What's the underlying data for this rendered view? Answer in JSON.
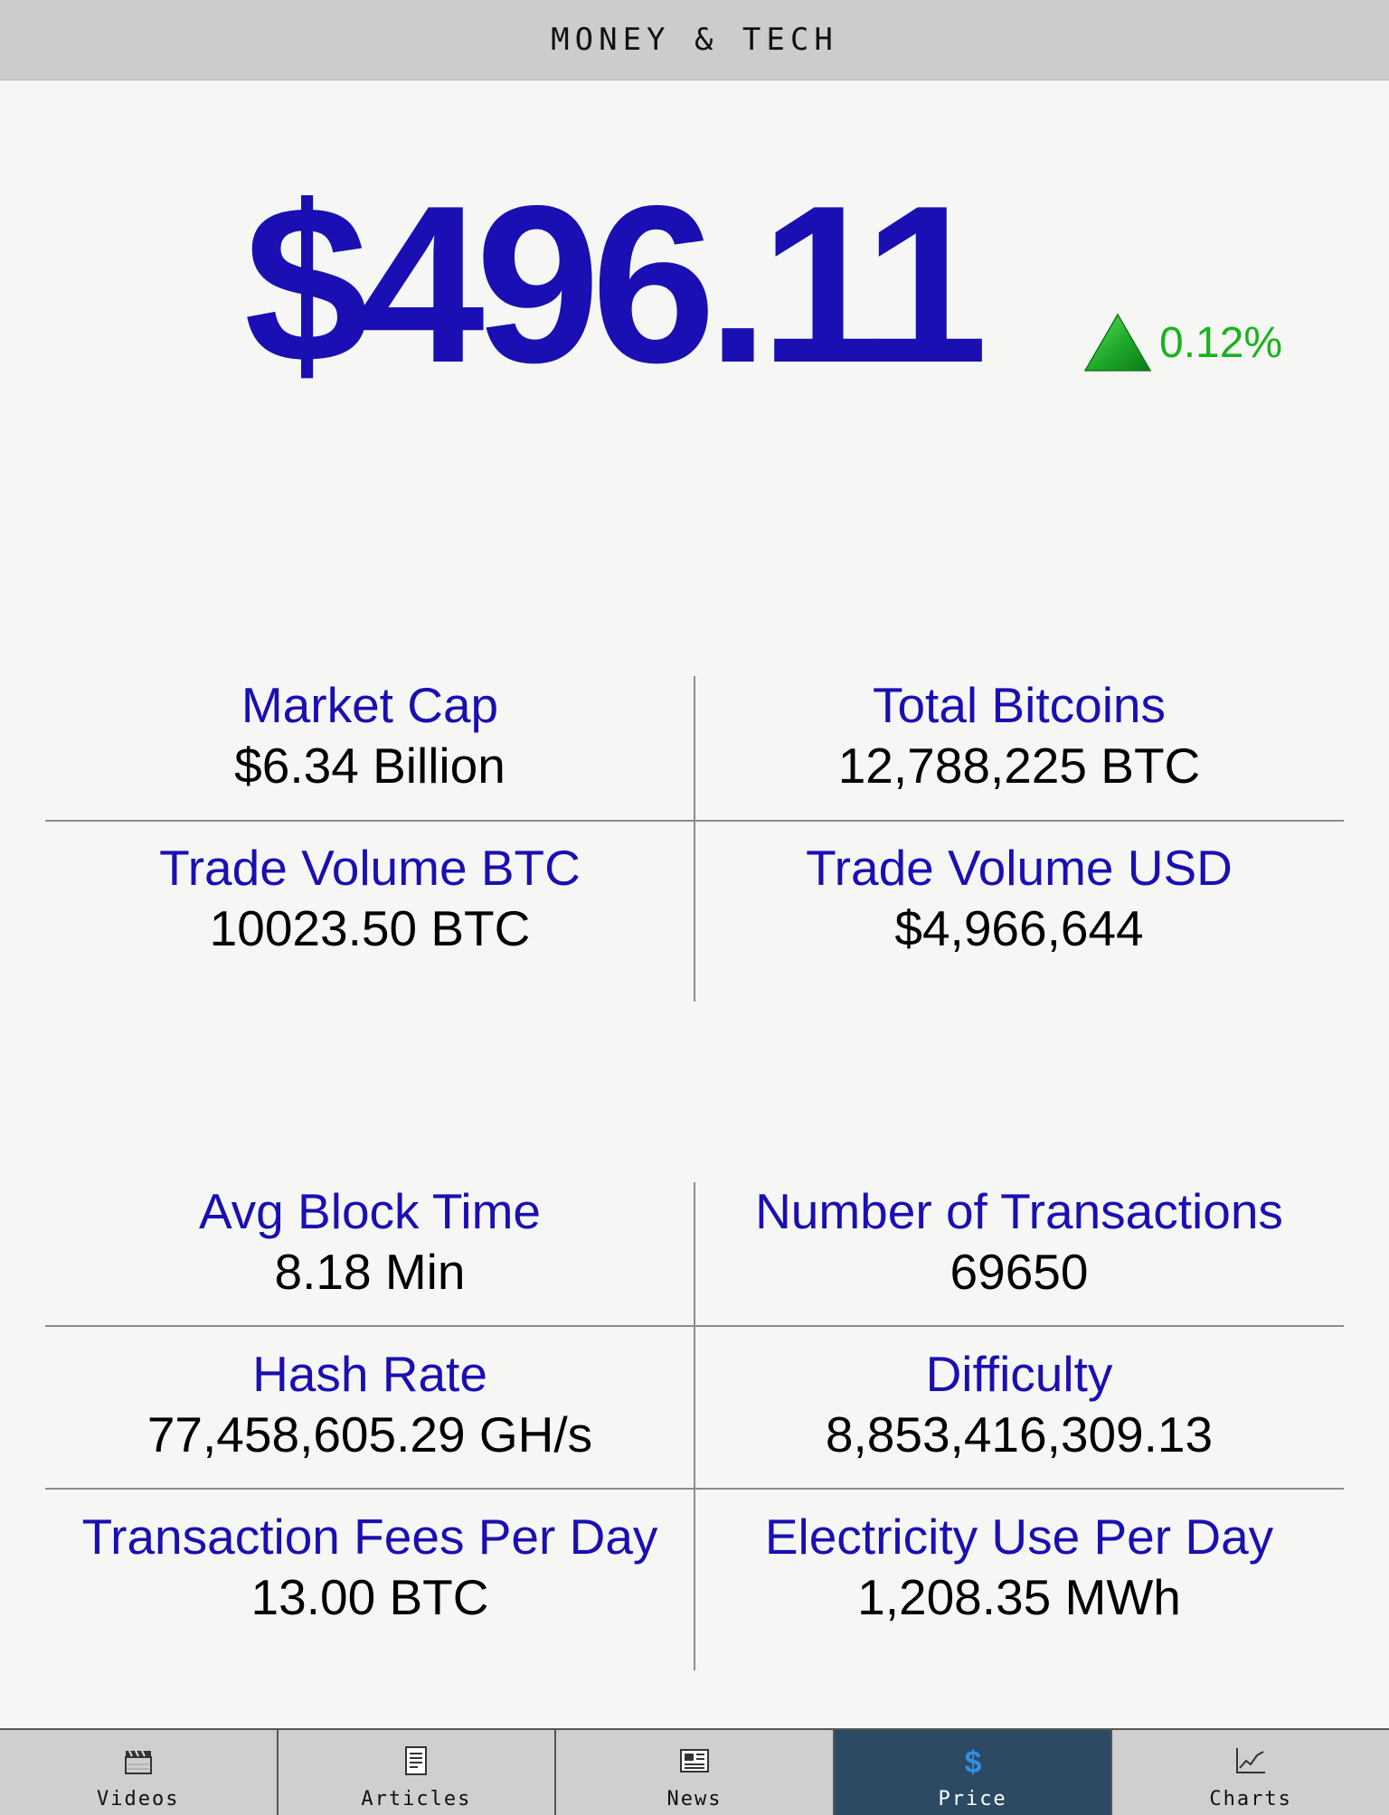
{
  "header": {
    "title": "MONEY & TECH"
  },
  "price": {
    "value": "$496.11",
    "change": "0.12%",
    "direction": "up",
    "price_color": "#1a0fb2",
    "change_color": "#19b31e"
  },
  "stats_top": [
    {
      "label": "Market Cap",
      "value": "$6.34 Billion"
    },
    {
      "label": "Total Bitcoins",
      "value": "12,788,225 BTC"
    },
    {
      "label": "Trade Volume BTC",
      "value": "10023.50 BTC"
    },
    {
      "label": "Trade Volume USD",
      "value": "$4,966,644"
    }
  ],
  "stats_bottom": [
    {
      "label": "Avg Block Time",
      "value": "8.18 Min"
    },
    {
      "label": "Number of Transactions",
      "value": "69650"
    },
    {
      "label": "Hash Rate",
      "value": "77,458,605.29 GH/s"
    },
    {
      "label": "Difficulty",
      "value": "8,853,416,309.13"
    },
    {
      "label": "Transaction Fees Per Day",
      "value": "13.00 BTC"
    },
    {
      "label": "Electricity Use Per Day",
      "value": "1,208.35 MWh"
    }
  ],
  "tabbar": {
    "active": "Price",
    "tabs": [
      {
        "label": "Videos",
        "icon": "clapperboard-icon"
      },
      {
        "label": "Articles",
        "icon": "document-icon"
      },
      {
        "label": "News",
        "icon": "newspaper-icon"
      },
      {
        "label": "Price",
        "icon": "dollar-icon"
      },
      {
        "label": "Charts",
        "icon": "line-chart-icon"
      }
    ],
    "active_color": "#2c4a63"
  }
}
